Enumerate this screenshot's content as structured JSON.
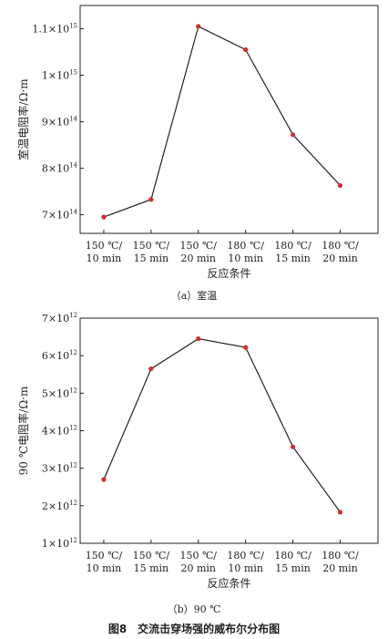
{
  "figure_caption": "图8　交流击穿场强的威布尔分布图",
  "chart_data": [
    {
      "type": "line",
      "subcaption": "（a）室温",
      "ylabel": "室温电阻率/Ω·m",
      "xlabel": "反应条件",
      "categories": [
        [
          "150 ℃/",
          "10 min"
        ],
        [
          "150 ℃/",
          "15 min"
        ],
        [
          "150 ℃/",
          "20 min"
        ],
        [
          "180 ℃/",
          "10 min"
        ],
        [
          "180 ℃/",
          "15 min"
        ],
        [
          "180 ℃/",
          "20 min"
        ]
      ],
      "values": [
        695000000000000.0,
        733000000000000.0,
        1105000000000000.0,
        1055000000000000.0,
        872000000000000.0,
        763000000000000.0
      ],
      "ylim": [
        660000000000000.0,
        1150000000000000.0
      ],
      "yticks": [
        {
          "value": 700000000000000.0,
          "mant": "7×10",
          "exp": "14"
        },
        {
          "value": 800000000000000.0,
          "mant": "8×10",
          "exp": "14"
        },
        {
          "value": 900000000000000.0,
          "mant": "9×10",
          "exp": "14"
        },
        {
          "value": 1000000000000000.0,
          "mant": "1×10",
          "exp": "15"
        },
        {
          "value": 1100000000000000.0,
          "mant": "1.1×10",
          "exp": "15"
        }
      ],
      "marker_color": "#d42a2a",
      "line_color": "#111111",
      "grid": false
    },
    {
      "type": "line",
      "subcaption": "（b）90 ℃",
      "ylabel": "90 ℃电阻率/Ω·m",
      "xlabel": "反应条件",
      "categories": [
        [
          "150 ℃/",
          "10 min"
        ],
        [
          "150 ℃/",
          "15 min"
        ],
        [
          "150 ℃/",
          "20 min"
        ],
        [
          "180 ℃/",
          "10 min"
        ],
        [
          "180 ℃/",
          "15 min"
        ],
        [
          "180 ℃/",
          "20 min"
        ]
      ],
      "values": [
        2700000000000.0,
        5650000000000.0,
        6450000000000.0,
        6220000000000.0,
        3570000000000.0,
        1830000000000.0
      ],
      "ylim": [
        1000000000000.0,
        7000000000000.0
      ],
      "yticks": [
        {
          "value": 1000000000000.0,
          "mant": "1×10",
          "exp": "12"
        },
        {
          "value": 2000000000000.0,
          "mant": "2×10",
          "exp": "12"
        },
        {
          "value": 3000000000000.0,
          "mant": "3×10",
          "exp": "12"
        },
        {
          "value": 4000000000000.0,
          "mant": "4×10",
          "exp": "12"
        },
        {
          "value": 5000000000000.0,
          "mant": "5×10",
          "exp": "12"
        },
        {
          "value": 6000000000000.0,
          "mant": "6×10",
          "exp": "12"
        },
        {
          "value": 7000000000000.0,
          "mant": "7×10",
          "exp": "12"
        }
      ],
      "marker_color": "#d42a2a",
      "line_color": "#111111",
      "grid": false
    }
  ]
}
